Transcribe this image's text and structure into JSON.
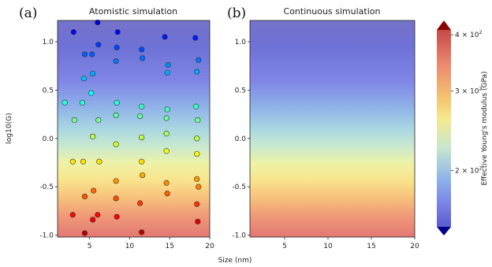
{
  "figure": {
    "panel_a_letter": "(a)",
    "panel_b_letter": "(b)",
    "colormap": "jet",
    "colors": {
      "low": "#3b4cc0",
      "mid": "#f5e98e",
      "high": "#b40426",
      "under": "#00008b",
      "over": "#8b0000"
    }
  },
  "chart_data": [
    {
      "type": "scatter",
      "title": "Atomistic simulation",
      "xlabel": "Size (nm)",
      "ylabel": "log10(G)",
      "xlim": [
        1,
        20
      ],
      "ylim": [
        -1.02,
        1.22
      ],
      "xticks": [
        "5",
        "10",
        "15",
        "20"
      ],
      "yticks": [
        "-1.0",
        "-0.5",
        "0.0",
        "0.5",
        "1.0"
      ],
      "background": "vertical gradient of effective modulus vs log10(G)",
      "points": [
        {
          "x": 3.0,
          "y": 1.1
        },
        {
          "x": 6.0,
          "y": 1.2
        },
        {
          "x": 8.5,
          "y": 1.1
        },
        {
          "x": 4.4,
          "y": 0.87
        },
        {
          "x": 5.3,
          "y": 0.87
        },
        {
          "x": 6.1,
          "y": 0.97
        },
        {
          "x": 8.3,
          "y": 0.8
        },
        {
          "x": 8.4,
          "y": 0.94
        },
        {
          "x": 11.5,
          "y": 0.92
        },
        {
          "x": 11.6,
          "y": 0.83
        },
        {
          "x": 14.4,
          "y": 1.05
        },
        {
          "x": 18.2,
          "y": 1.04
        },
        {
          "x": 18.6,
          "y": 0.81
        },
        {
          "x": 14.8,
          "y": 0.76
        },
        {
          "x": 14.7,
          "y": 0.68
        },
        {
          "x": 18.4,
          "y": 0.69
        },
        {
          "x": 4.3,
          "y": 0.62
        },
        {
          "x": 5.4,
          "y": 0.67
        },
        {
          "x": 5.2,
          "y": 0.47
        },
        {
          "x": 1.9,
          "y": 0.37
        },
        {
          "x": 4.1,
          "y": 0.37
        },
        {
          "x": 8.4,
          "y": 0.37
        },
        {
          "x": 11.5,
          "y": 0.33
        },
        {
          "x": 14.7,
          "y": 0.3
        },
        {
          "x": 18.3,
          "y": 0.33
        },
        {
          "x": 3.1,
          "y": 0.19
        },
        {
          "x": 6.1,
          "y": 0.19
        },
        {
          "x": 8.3,
          "y": 0.24
        },
        {
          "x": 11.3,
          "y": 0.23
        },
        {
          "x": 14.6,
          "y": 0.21
        },
        {
          "x": 18.5,
          "y": 0.19
        },
        {
          "x": 5.4,
          "y": 0.02
        },
        {
          "x": 11.5,
          "y": 0.01
        },
        {
          "x": 14.6,
          "y": 0.05
        },
        {
          "x": 18.4,
          "y": 0.0
        },
        {
          "x": 8.3,
          "y": -0.06
        },
        {
          "x": 14.6,
          "y": -0.13
        },
        {
          "x": 18.4,
          "y": -0.16
        },
        {
          "x": 2.9,
          "y": -0.24
        },
        {
          "x": 4.2,
          "y": -0.24
        },
        {
          "x": 6.2,
          "y": -0.24
        },
        {
          "x": 11.5,
          "y": -0.24
        },
        {
          "x": 11.6,
          "y": -0.38
        },
        {
          "x": 8.3,
          "y": -0.44
        },
        {
          "x": 14.6,
          "y": -0.46
        },
        {
          "x": 18.4,
          "y": -0.42
        },
        {
          "x": 18.6,
          "y": -0.5
        },
        {
          "x": 5.5,
          "y": -0.54
        },
        {
          "x": 14.7,
          "y": -0.57
        },
        {
          "x": 4.4,
          "y": -0.6
        },
        {
          "x": 8.3,
          "y": -0.62
        },
        {
          "x": 11.3,
          "y": -0.67
        },
        {
          "x": 18.4,
          "y": -0.68
        },
        {
          "x": 2.9,
          "y": -0.79
        },
        {
          "x": 6.0,
          "y": -0.79
        },
        {
          "x": 5.4,
          "y": -0.84
        },
        {
          "x": 8.4,
          "y": -0.81
        },
        {
          "x": 18.5,
          "y": -0.86
        },
        {
          "x": 4.4,
          "y": -0.98
        },
        {
          "x": 11.5,
          "y": -0.97
        }
      ]
    },
    {
      "type": "heatmap",
      "title": "Continuous simulation",
      "xlim": [
        1,
        20
      ],
      "ylim": [
        -1.02,
        1.22
      ],
      "xticks": [
        "5",
        "10",
        "15",
        "20"
      ],
      "yticks": [
        "-1.0",
        "-0.5",
        "0.0",
        "0.5",
        "1.0"
      ],
      "description": "smooth vertical gradient identical in x"
    }
  ],
  "colorbar": {
    "label": "Effective Young's modulus (GPa)",
    "scale": "log",
    "range": [
      150,
      410
    ],
    "ticks": [
      {
        "value": 400,
        "mantissa": "4",
        "base": "× 10",
        "exp": "2"
      },
      {
        "value": 300,
        "mantissa": "3",
        "base": "× 10",
        "exp": "2"
      },
      {
        "value": 200,
        "mantissa": "2",
        "base": "× 10",
        "exp": "2"
      }
    ],
    "extend": "both"
  }
}
